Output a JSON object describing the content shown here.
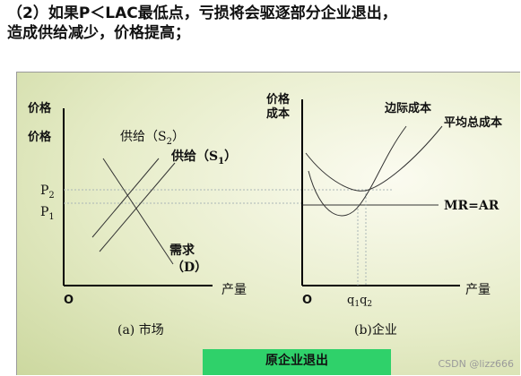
{
  "heading": {
    "line1_num": "（2）",
    "line1_text": "如果P＜LAC最低点，亏损将会驱逐部分企业退出，",
    "line2_text": "造成供给减少，价格提高；"
  },
  "market": {
    "y_axis_label_1": "价格",
    "y_axis_label_2": "价格",
    "x_axis_label": "产量",
    "origin": "O",
    "supply2_label": "供给（S",
    "supply2_sub": "2",
    "supply2_close": "）",
    "supply1_label": "供给（S",
    "supply1_sub": "1",
    "supply1_close": "）",
    "demand_label_1": "需求",
    "demand_label_2": "（D）",
    "p2_label": "P",
    "p2_sub": "2",
    "p1_label": "P",
    "p1_sub": "1",
    "caption": "(a) 市场"
  },
  "firm": {
    "y_axis_label_1": "价格",
    "y_axis_label_2": "成本",
    "x_axis_label": "产量",
    "origin": "O",
    "mc_label": "边际成本",
    "atc_label": "平均总成本",
    "mr_label": "MR=AR",
    "q1_label": "q",
    "q1_sub": "1",
    "q2_label": "q",
    "q2_sub": "2",
    "caption": "(b)企业"
  },
  "footer_box": "原企业退出",
  "watermark": "CSDN @lizz666",
  "colors": {
    "panel_gradient_center": "#fbfbf0",
    "panel_gradient_edge": "#ccd89f",
    "caption_box": "#2fd16a"
  }
}
